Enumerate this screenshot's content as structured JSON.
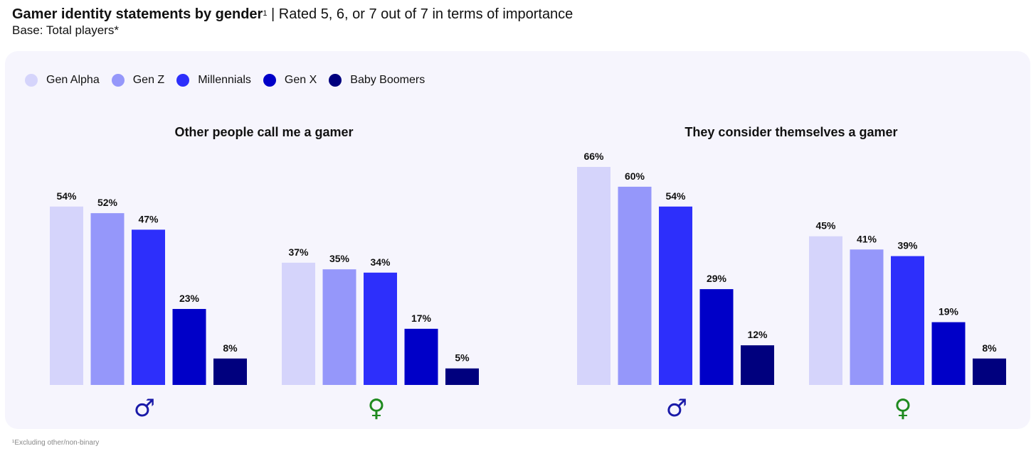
{
  "header": {
    "title_bold": "Gamer identity statements by gender",
    "title_sup": "1",
    "title_rest": " | Rated 5, 6, or 7 out of 7 in terms of importance",
    "subtitle": "Base: Total players*"
  },
  "legend": [
    {
      "label": "Gen Alpha",
      "color": "#d5d4fb"
    },
    {
      "label": "Gen Z",
      "color": "#9597fa"
    },
    {
      "label": "Millennials",
      "color": "#2d2ffb"
    },
    {
      "label": "Gen X",
      "color": "#0000c8"
    },
    {
      "label": "Baby Boomers",
      "color": "#00007e"
    }
  ],
  "chart_data": [
    {
      "type": "bar",
      "title": "Other people call me a gamer",
      "categories": [
        "Male",
        "Female"
      ],
      "category_symbols": [
        "♂",
        "♀"
      ],
      "series": [
        {
          "name": "Gen Alpha",
          "values": [
            54,
            37
          ]
        },
        {
          "name": "Gen Z",
          "values": [
            52,
            35
          ]
        },
        {
          "name": "Millennials",
          "values": [
            47,
            34
          ]
        },
        {
          "name": "Gen X",
          "values": [
            23,
            17
          ]
        },
        {
          "name": "Baby Boomers",
          "values": [
            8,
            5
          ]
        }
      ],
      "value_suffix": "%",
      "ylim": [
        0,
        66
      ]
    },
    {
      "type": "bar",
      "title": "They consider themselves a gamer",
      "categories": [
        "Male",
        "Female"
      ],
      "category_symbols": [
        "♂",
        "♀"
      ],
      "series": [
        {
          "name": "Gen Alpha",
          "values": [
            66,
            45
          ]
        },
        {
          "name": "Gen Z",
          "values": [
            60,
            41
          ]
        },
        {
          "name": "Millennials",
          "values": [
            54,
            39
          ]
        },
        {
          "name": "Gen X",
          "values": [
            29,
            19
          ]
        },
        {
          "name": "Baby Boomers",
          "values": [
            12,
            8
          ]
        }
      ],
      "value_suffix": "%",
      "ylim": [
        0,
        66
      ]
    }
  ],
  "symbol_colors": {
    "male": "#1a1aa8",
    "female": "#1f8a1f"
  },
  "footnote": "¹Excluding other/non-binary"
}
